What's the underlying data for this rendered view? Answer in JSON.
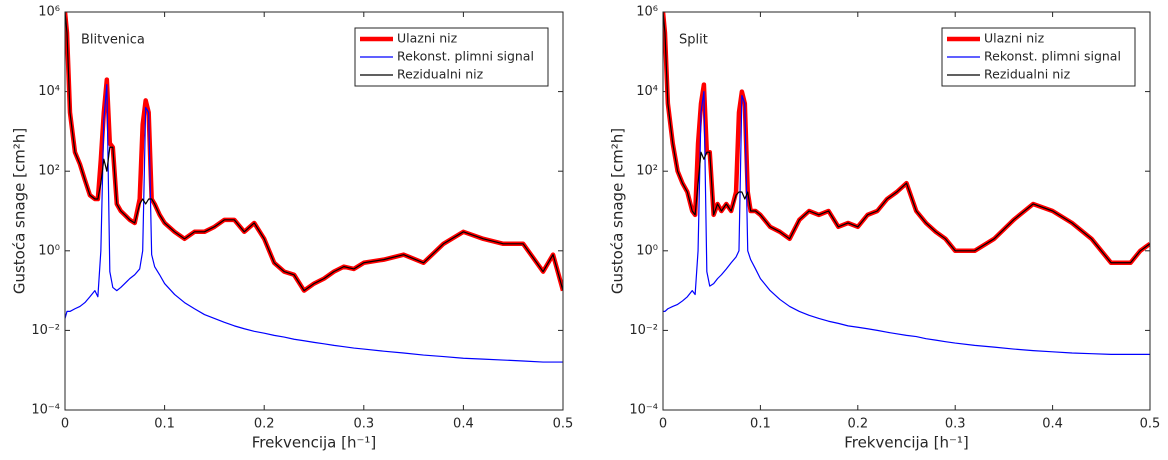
{
  "chart_data": [
    {
      "type": "line",
      "title": "Blitvenica",
      "xlabel": "Frekvencija [h⁻¹]",
      "ylabel": "Gustoća snage [cm²h]",
      "yscale": "log",
      "legend": "upper right",
      "xlim": [
        0,
        0.5
      ],
      "xticks": [
        0,
        0.1,
        0.2,
        0.3,
        0.4,
        0.5
      ],
      "ylim": [
        0.0001,
        1000000
      ],
      "yticks": [
        {
          "value": 0.0001,
          "label": "10⁻⁴"
        },
        {
          "value": 0.01,
          "label": "10⁻²"
        },
        {
          "value": 1,
          "label": "10⁰"
        },
        {
          "value": 100,
          "label": "10²"
        },
        {
          "value": 10000,
          "label": "10⁴"
        },
        {
          "value": 1000000,
          "label": "10⁶"
        }
      ],
      "x": [
        0,
        0.002,
        0.005,
        0.01,
        0.015,
        0.02,
        0.025,
        0.03,
        0.033,
        0.036,
        0.039,
        0.042,
        0.045,
        0.048,
        0.052,
        0.056,
        0.06,
        0.065,
        0.07,
        0.075,
        0.078,
        0.081,
        0.084,
        0.087,
        0.09,
        0.095,
        0.1,
        0.11,
        0.12,
        0.13,
        0.14,
        0.15,
        0.16,
        0.17,
        0.18,
        0.19,
        0.2,
        0.21,
        0.22,
        0.23,
        0.24,
        0.25,
        0.26,
        0.27,
        0.28,
        0.29,
        0.3,
        0.32,
        0.34,
        0.36,
        0.38,
        0.4,
        0.42,
        0.44,
        0.46,
        0.48,
        0.49,
        0.5
      ],
      "series": [
        {
          "name": "Ulazni niz",
          "color": "#ff0000",
          "linewidth": 4.5,
          "values": [
            1000000,
            300000,
            3000,
            300,
            150,
            60,
            25,
            20,
            20,
            200,
            3000,
            20000,
            500,
            400,
            15,
            10,
            8,
            6,
            5,
            20,
            1500,
            6000,
            3000,
            20,
            15,
            8,
            5,
            3,
            2,
            3,
            3,
            4,
            6,
            6,
            3,
            5,
            2,
            0.5,
            0.3,
            0.25,
            0.1,
            0.15,
            0.2,
            0.3,
            0.4,
            0.35,
            0.5,
            0.6,
            0.8,
            0.5,
            1.5,
            3,
            2,
            1.5,
            1.5,
            0.3,
            0.8,
            0.1
          ]
        },
        {
          "name": "Rekonst. plimni signal",
          "color": "#0000ff",
          "linewidth": 1.2,
          "values": [
            0.02,
            0.03,
            0.03,
            0.035,
            0.04,
            0.05,
            0.07,
            0.1,
            0.07,
            1,
            2000,
            15000,
            0.3,
            0.12,
            0.1,
            0.12,
            0.15,
            0.2,
            0.25,
            0.35,
            1,
            4000,
            3000,
            0.8,
            0.4,
            0.25,
            0.15,
            0.08,
            0.05,
            0.035,
            0.025,
            0.02,
            0.016,
            0.013,
            0.011,
            0.0095,
            0.0085,
            0.0075,
            0.0068,
            0.006,
            0.0055,
            0.005,
            0.0046,
            0.0042,
            0.0039,
            0.0036,
            0.0034,
            0.003,
            0.0027,
            0.0024,
            0.0022,
            0.002,
            0.0019,
            0.0018,
            0.0017,
            0.0016,
            0.0016,
            0.0016
          ]
        },
        {
          "name": "Rezidualni niz",
          "color": "#000000",
          "linewidth": 1.2,
          "values": [
            1000000,
            300000,
            3000,
            300,
            150,
            60,
            25,
            20,
            20,
            50,
            200,
            100,
            400,
            400,
            15,
            10,
            8,
            6,
            5,
            15,
            20,
            15,
            20,
            20,
            15,
            8,
            5,
            3,
            2,
            3,
            3,
            4,
            6,
            6,
            3,
            5,
            2,
            0.5,
            0.3,
            0.25,
            0.1,
            0.15,
            0.2,
            0.3,
            0.4,
            0.35,
            0.5,
            0.6,
            0.8,
            0.5,
            1.5,
            3,
            2,
            1.5,
            1.5,
            0.3,
            0.8,
            0.1
          ]
        }
      ]
    },
    {
      "type": "line",
      "title": "Split",
      "xlabel": "Frekvencija [h⁻¹]",
      "ylabel": "Gustoća snage [cm²h]",
      "yscale": "log",
      "legend": "upper right",
      "xlim": [
        0,
        0.5
      ],
      "xticks": [
        0,
        0.1,
        0.2,
        0.3,
        0.4,
        0.5
      ],
      "ylim": [
        0.0001,
        1000000
      ],
      "yticks": [
        {
          "value": 0.0001,
          "label": "10⁻⁴"
        },
        {
          "value": 0.01,
          "label": "10⁻²"
        },
        {
          "value": 1,
          "label": "10⁰"
        },
        {
          "value": 100,
          "label": "10²"
        },
        {
          "value": 10000,
          "label": "10⁴"
        },
        {
          "value": 1000000,
          "label": "10⁶"
        }
      ],
      "x": [
        0,
        0.002,
        0.005,
        0.01,
        0.015,
        0.02,
        0.025,
        0.03,
        0.033,
        0.036,
        0.039,
        0.042,
        0.045,
        0.048,
        0.052,
        0.056,
        0.06,
        0.065,
        0.07,
        0.075,
        0.078,
        0.081,
        0.084,
        0.087,
        0.09,
        0.095,
        0.1,
        0.11,
        0.12,
        0.13,
        0.14,
        0.15,
        0.16,
        0.17,
        0.18,
        0.19,
        0.2,
        0.21,
        0.22,
        0.23,
        0.24,
        0.25,
        0.26,
        0.27,
        0.28,
        0.29,
        0.3,
        0.32,
        0.34,
        0.36,
        0.38,
        0.4,
        0.42,
        0.44,
        0.46,
        0.48,
        0.49,
        0.5
      ],
      "series": [
        {
          "name": "Ulazni niz",
          "color": "#ff0000",
          "linewidth": 4.5,
          "values": [
            1000000,
            300000,
            5000,
            500,
            100,
            50,
            30,
            10,
            8,
            500,
            5000,
            15000,
            300,
            300,
            8,
            15,
            10,
            15,
            10,
            30,
            3000,
            10000,
            5000,
            30,
            10,
            10,
            8,
            4,
            3,
            2,
            6,
            10,
            8,
            10,
            4,
            5,
            4,
            8,
            10,
            20,
            30,
            50,
            10,
            5,
            3,
            2,
            1,
            1,
            2,
            6,
            15,
            10,
            5,
            2,
            0.5,
            0.5,
            1,
            1.5
          ]
        },
        {
          "name": "Rekonst. plimni signal",
          "color": "#0000ff",
          "linewidth": 1.2,
          "values": [
            0.03,
            0.03,
            0.035,
            0.04,
            0.045,
            0.055,
            0.07,
            0.1,
            0.08,
            1,
            3000,
            10000,
            0.3,
            0.13,
            0.15,
            0.2,
            0.25,
            0.35,
            0.5,
            0.7,
            1,
            8000,
            5000,
            1,
            0.6,
            0.35,
            0.2,
            0.1,
            0.06,
            0.04,
            0.03,
            0.024,
            0.02,
            0.017,
            0.015,
            0.013,
            0.012,
            0.011,
            0.01,
            0.009,
            0.0082,
            0.0075,
            0.007,
            0.0062,
            0.0057,
            0.0052,
            0.0048,
            0.0042,
            0.0038,
            0.0034,
            0.0031,
            0.0029,
            0.0027,
            0.0026,
            0.0025,
            0.0025,
            0.0025,
            0.0025
          ]
        },
        {
          "name": "Rezidualni niz",
          "color": "#000000",
          "linewidth": 1.2,
          "values": [
            1000000,
            300000,
            5000,
            500,
            100,
            50,
            30,
            10,
            8,
            50,
            300,
            200,
            300,
            300,
            8,
            15,
            10,
            15,
            10,
            25,
            30,
            30,
            20,
            30,
            10,
            10,
            8,
            4,
            3,
            2,
            6,
            10,
            8,
            10,
            4,
            5,
            4,
            8,
            10,
            20,
            30,
            50,
            10,
            5,
            3,
            2,
            1,
            1,
            2,
            6,
            15,
            10,
            5,
            2,
            0.5,
            0.5,
            1,
            1.5
          ]
        }
      ]
    }
  ]
}
